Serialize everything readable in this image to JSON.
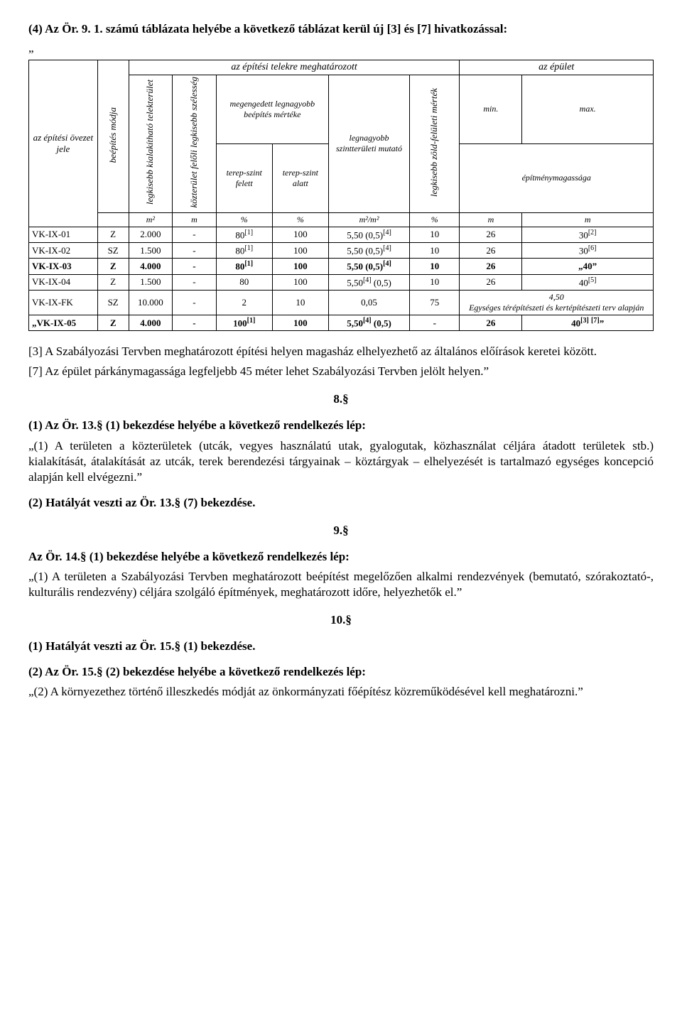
{
  "intro_line": "(4) Az Ör. 9. 1. számú táblázata helyébe a következő táblázat kerül új [3] és [7] hivatkozással:",
  "quote_open": "„",
  "header": {
    "col_left": "az építési övezet jele",
    "top_mid": "az építési telekre meghatározott",
    "top_right": "az épület",
    "mode": "beépítés módja",
    "minplot": "legkisebb kialakítható telekterület",
    "street": "közterület felőli legkisebb szélesség",
    "allowed": "megengedett legnagyobb beépítés mértéke",
    "above": "terep-szint felett",
    "below": "terep-szint alatt",
    "floorarea": "legnagyobb szintterületi mutató",
    "green": "legkisebb zöld-felületi mérték",
    "min": "min.",
    "max": "max.",
    "bheight": "építménymagassága",
    "u_m2": "m²",
    "u_m": "m",
    "u_pct": "%",
    "u_ratio": "m²/m²"
  },
  "rows": [
    {
      "code": "VK-IX-01",
      "mode": "Z",
      "plot": "2.000",
      "street": "-",
      "above": "80[1]",
      "below": "100",
      "floor": "5,50 (0,5)[4]",
      "green": "10",
      "min": "26",
      "max": "30[2]",
      "bold": false
    },
    {
      "code": "VK-IX-02",
      "mode": "SZ",
      "plot": "1.500",
      "street": "-",
      "above": "80[1]",
      "below": "100",
      "floor": "5,50 (0,5)[4]",
      "green": "10",
      "min": "26",
      "max": "30[6]",
      "bold": false
    },
    {
      "code": "VK-IX-03",
      "mode": "Z",
      "plot": "4.000",
      "street": "-",
      "above": "80[1]",
      "below": "100",
      "floor": "5,50 (0,5)[4]",
      "green": "10",
      "min": "26",
      "max": "„40”",
      "bold": true
    },
    {
      "code": "VK-IX-04",
      "mode": "Z",
      "plot": "1.500",
      "street": "-",
      "above": "80",
      "below": "100",
      "floor": "5,50[4] (0,5)",
      "green": "10",
      "min": "26",
      "max": "40[5]",
      "bold": false
    },
    {
      "code": "VK-IX-FK",
      "mode": "SZ",
      "plot": "10.000",
      "street": "-",
      "above": "2",
      "below": "10",
      "floor": "0,05",
      "green": "75",
      "min": "",
      "max": "4,50\nEgységes térépítészeti és kertépítészeti terv alapján",
      "bold": false,
      "maxspan": true
    },
    {
      "code": "„VK-IX-05",
      "mode": "Z",
      "plot": "4.000",
      "street": "-",
      "above": "100[1]",
      "below": "100",
      "floor": "5,50[4] (0,5)",
      "green": "-",
      "min": "26",
      "max": "40[3] [7]”",
      "bold": true
    }
  ],
  "notes": {
    "n3": "[3] A Szabályozási Tervben meghatározott építési helyen magasház elhelyezhető az általános előírások keretei között.",
    "n7": "[7] Az épület párkánymagassága legfeljebb 45 méter lehet Szabályozási Tervben jelölt helyen.”"
  },
  "s8": {
    "num": "8.§",
    "p1a": "(1) Az Ör. 13.§ (1) bekezdése helyébe a következő rendelkezés lép:",
    "p1b": "„(1) A területen a közterületek (utcák, vegyes használatú utak, gyalogutak, közhasználat céljára átadott területek stb.) kialakítását, átalakítását az utcák, terek berendezési tárgyainak – köztárgyak – elhelyezését is tartalmazó egységes koncepció alapján kell elvégezni.”",
    "p2": "(2) Hatályát veszti az Ör. 13.§ (7) bekezdése."
  },
  "s9": {
    "num": "9.§",
    "p1a": "Az Ör. 14.§ (1) bekezdése helyébe a következő rendelkezés lép:",
    "p1b": "„(1) A területen a Szabályozási Tervben meghatározott beépítést megelőzően alkalmi rendezvények (bemutató, szórakoztató-, kulturális rendezvény) céljára szolgáló építmények, meghatározott időre, helyezhetők el.”"
  },
  "s10": {
    "num": "10.§",
    "p1": "(1) Hatályát veszti az Ör. 15.§ (1) bekezdése.",
    "p2a": "(2) Az Ör. 15.§ (2) bekezdése helyébe a következő rendelkezés lép:",
    "p2b": "„(2) A környezethez történő illeszkedés módját az önkormányzati főépítész közreműködésével kell meghatározni.”"
  }
}
